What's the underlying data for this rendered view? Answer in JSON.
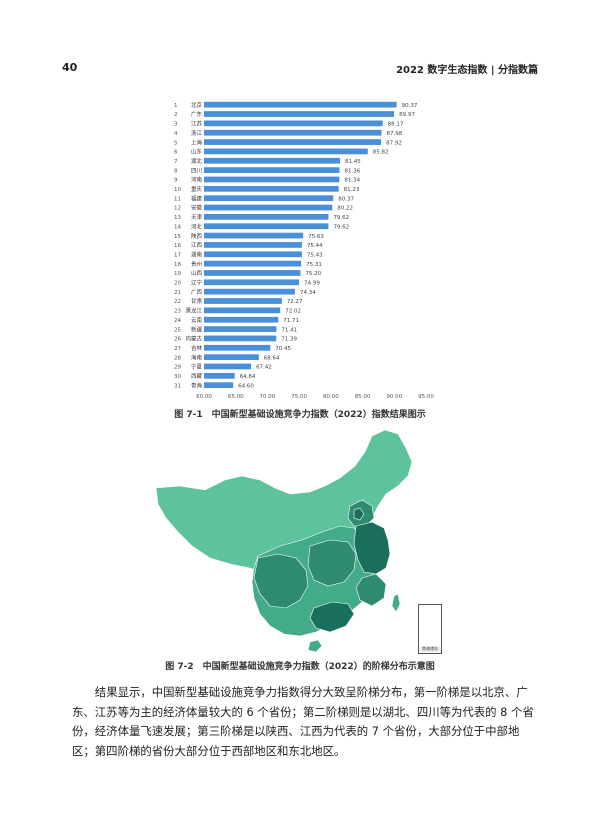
{
  "header": {
    "page_number": "40",
    "title": "2022 数字生态指数 | 分指数篇"
  },
  "figure1": {
    "caption": "图 7-1　中国新型基础设施竞争力指数（2022）指数结果图示"
  },
  "chart_data": {
    "type": "bar",
    "orientation": "horizontal",
    "categories": [
      "北京",
      "广东",
      "江苏",
      "浙江",
      "上海",
      "山东",
      "湖北",
      "四川",
      "河南",
      "重庆",
      "福建",
      "安徽",
      "天津",
      "河北",
      "陕西",
      "江西",
      "湖南",
      "贵州",
      "山西",
      "辽宁",
      "广西",
      "甘肃",
      "黑龙江",
      "云南",
      "新疆",
      "内蒙古",
      "吉林",
      "海南",
      "宁夏",
      "西藏",
      "青海"
    ],
    "ranks": [
      "1",
      "2",
      "3",
      "4",
      "5",
      "6",
      "7",
      "8",
      "9",
      "10",
      "11",
      "12",
      "13",
      "14",
      "15",
      "16",
      "17",
      "18",
      "19",
      "20",
      "21",
      "22",
      "23",
      "24",
      "25",
      "26",
      "27",
      "28",
      "29",
      "30",
      "31"
    ],
    "values": [
      90.37,
      89.97,
      88.17,
      87.98,
      87.92,
      85.82,
      81.45,
      81.36,
      81.34,
      81.23,
      80.37,
      80.22,
      79.62,
      79.62,
      75.63,
      75.44,
      75.43,
      75.31,
      75.2,
      74.99,
      74.34,
      72.27,
      72.02,
      71.71,
      71.41,
      71.39,
      70.45,
      68.64,
      67.42,
      64.84,
      64.6
    ],
    "value_labels": [
      "90.37",
      "89.97",
      "88.17",
      "87.98",
      "87.92",
      "85.82",
      "81.45",
      "81.36",
      "81.34",
      "81.23",
      "80.37",
      "80.22",
      "79.62",
      "79.62",
      "75.63",
      "75.44",
      "75.43",
      "75.31",
      "75.20",
      "74.99",
      "74.34",
      "72.27",
      "72.02",
      "71.71",
      "71.41",
      "71.39",
      "70.45",
      "68.64",
      "67.42",
      "64.84",
      "64.60"
    ],
    "xlim": [
      60,
      95
    ],
    "x_ticks": [
      "60.00",
      "65.00",
      "70.00",
      "75.00",
      "80.00",
      "85.00",
      "90.00",
      "95.00"
    ],
    "bar_color": "#4a90d9",
    "grid": false
  },
  "figure2": {
    "caption": "图 7-2　中国新型基础设施竞争力指数（2022）的阶梯分布示意图",
    "inset_label": "南海诸岛"
  },
  "map_colors": {
    "tier1": "#1a6f5c",
    "tier2": "#2e8a70",
    "tier3": "#44ab8a",
    "tier4": "#5cc39c"
  },
  "body": {
    "paragraph": "结果显示，中国新型基础设施竞争力指数得分大致呈阶梯分布，第一阶梯是以北京、广东、江苏等为主的经济体量较大的 6 个省份；第二阶梯则是以湖北、四川等为代表的 8 个省份，经济体量飞速发展；第三阶梯是以陕西、江西为代表的 7 个省份，大部分位于中部地区；第四阶梯的省份大部分位于西部地区和东北地区。"
  }
}
